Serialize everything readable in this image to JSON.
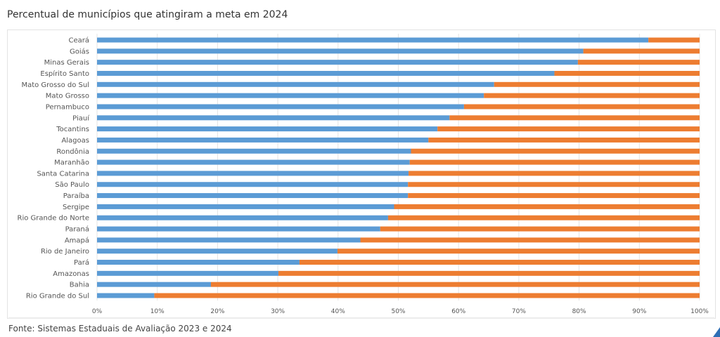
{
  "chart_data": {
    "type": "bar",
    "orientation": "horizontal",
    "stacked": true,
    "title": "Percentual de municípios que atingiram a meta em 2024",
    "categories": [
      "Ceará",
      "Goiás",
      "Minas Gerais",
      "Espírito Santo",
      "Mato Grosso do Sul",
      "Mato Grosso",
      "Pernambuco",
      "Piauí",
      "Tocantins",
      "Alagoas",
      "Rondônia",
      "Maranhão",
      "Santa Catarina",
      "São Paulo",
      "Paraíba",
      "Sergipe",
      "Rio Grande do Norte",
      "Paraná",
      "Amapá",
      "Rio de Janeiro",
      "Pará",
      "Amazonas",
      "Bahia",
      "Rio Grande do Sul"
    ],
    "series": [
      {
        "color": "#5b9bd5",
        "values": [
          91.5,
          80.7,
          79.8,
          75.9,
          65.9,
          64.2,
          60.9,
          58.5,
          56.5,
          55.0,
          52.1,
          51.9,
          51.7,
          51.6,
          51.6,
          49.3,
          48.3,
          47.0,
          43.7,
          39.9,
          33.6,
          30.1,
          18.9,
          9.5
        ]
      },
      {
        "color": "#ed7d31",
        "values": [
          8.5,
          19.3,
          20.2,
          24.1,
          34.1,
          35.8,
          39.1,
          41.5,
          43.5,
          45.0,
          47.9,
          48.1,
          48.3,
          48.4,
          48.4,
          50.7,
          51.7,
          53.0,
          56.3,
          60.1,
          66.4,
          69.9,
          81.1,
          90.5
        ]
      }
    ],
    "xlim": [
      0,
      100
    ],
    "xticks": [
      "0%",
      "10%",
      "20%",
      "30%",
      "40%",
      "50%",
      "60%",
      "70%",
      "80%",
      "90%",
      "100%"
    ],
    "grid": true
  },
  "source": "Fonte: Sistemas Estaduais de Avaliação 2023 e 2024"
}
